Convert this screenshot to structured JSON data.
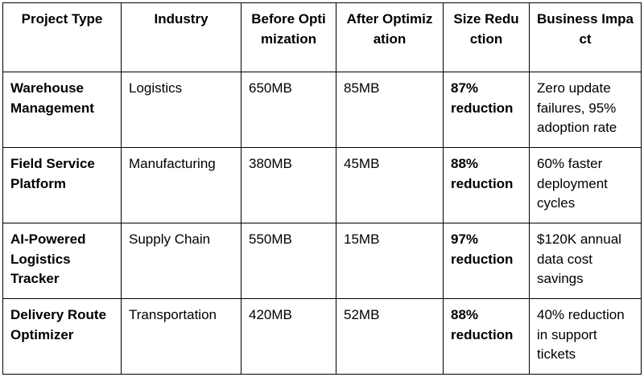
{
  "table": {
    "headers": [
      "Project Type",
      "Industry",
      "Before Optimization",
      "After Optimization",
      "Size Reduction",
      "Business Impact"
    ],
    "rows": [
      {
        "project_type": "Warehouse Management",
        "industry": "Logistics",
        "before": "650MB",
        "after": "85MB",
        "reduction": "87% reduction",
        "impact": "Zero update failures, 95% adoption rate"
      },
      {
        "project_type": "Field Service Platform",
        "industry": "Manufacturing",
        "before": "380MB",
        "after": "45MB",
        "reduction": "88% reduction",
        "impact": "60% faster deployment cycles"
      },
      {
        "project_type": "AI-Powered Logistics Tracker",
        "industry": "Supply Chain",
        "before": "550MB",
        "after": "15MB",
        "reduction": "97% reduction",
        "impact": "$120K annual data cost savings"
      },
      {
        "project_type": "Delivery Route Optimizer",
        "industry": "Transportation",
        "before": "420MB",
        "after": "52MB",
        "reduction": "88% reduction",
        "impact": "40% reduction in support tickets"
      }
    ]
  }
}
